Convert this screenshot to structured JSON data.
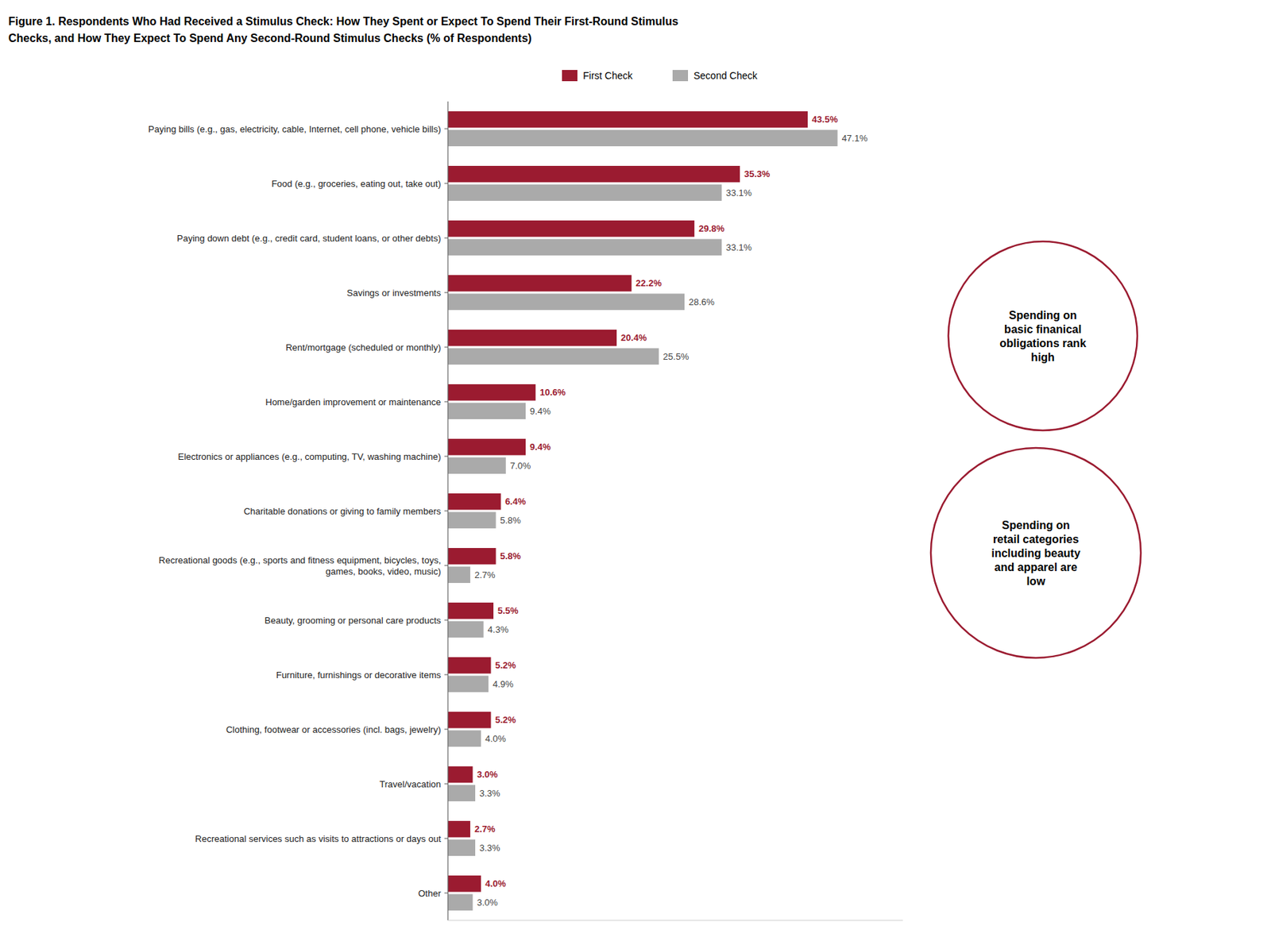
{
  "chart_data": {
    "type": "bar",
    "orientation": "horizontal",
    "title": "Figure 1. Respondents Who Had Received a Stimulus Check: How They Spent or Expect To Spend Their First-Round Stimulus",
    "subtitle": "Checks, and How They Expect To Spend Any Second-Round Stimulus Checks (% of Respondents)",
    "categories": [
      "Paying bills (e.g., gas, electricity, cable, Internet, cell phone, vehicle bills)",
      "Food (e.g., groceries, eating out, take out)",
      "Paying down debt (e.g., credit card, student loans, or other debts)",
      "Savings or investments",
      "Rent/mortgage (scheduled or monthly)",
      "Home/garden improvement or maintenance",
      "Electronics or appliances (e.g., computing, TV, washing machine)",
      "Charitable donations or giving to family members",
      "Recreational goods (e.g., sports and fitness equipment, bicycles, toys,\ngames, books, video, music)",
      "Beauty, grooming or personal care products",
      "Furniture, furnishings or decorative items",
      "Clothing, footwear or accessories (incl. bags, jewelry)",
      "Travel/vacation",
      "Recreational services such as visits to attractions or days out",
      "Other"
    ],
    "series": [
      {
        "name": "First Check",
        "color": "#9B1B30",
        "values": [
          43.5,
          35.3,
          29.8,
          22.2,
          20.4,
          10.6,
          9.4,
          6.4,
          5.8,
          5.5,
          5.2,
          5.2,
          3.0,
          2.7,
          4.0
        ],
        "value_labels": [
          "43.5%",
          "35.3%",
          "29.8%",
          "22.2%",
          "20.4%",
          "10.6%",
          "9.4%",
          "6.4%",
          "5.8%",
          "5.5%",
          "5.2%",
          "5.2%",
          "3.0%",
          "2.7%",
          "4.0%"
        ]
      },
      {
        "name": "Second Check",
        "color": "#AAAAAA",
        "values": [
          47.1,
          33.1,
          33.1,
          28.6,
          25.5,
          9.4,
          7.0,
          5.8,
          2.7,
          4.3,
          4.9,
          4.0,
          3.3,
          3.3,
          3.0
        ],
        "value_labels": [
          "47.1%",
          "33.1%",
          "33.1%",
          "28.6%",
          "25.5%",
          "9.4%",
          "7.0%",
          "5.8%",
          "2.7%",
          "4.3%",
          "4.9%",
          "4.0%",
          "3.3%",
          "3.3%",
          "3.0%"
        ]
      }
    ],
    "xlim": [
      0,
      55
    ],
    "tick_labels": "y",
    "data_labels": true,
    "grid": false,
    "legend": "top",
    "annotations": [
      {
        "text": "Spending on\nbasic finanical\nobligations rank\nhigh",
        "color": "#9B1B30"
      },
      {
        "text": "Spending on\nretail categories\nincluding beauty\nand apparel are\nlow",
        "color": "#9B1B30"
      }
    ]
  }
}
